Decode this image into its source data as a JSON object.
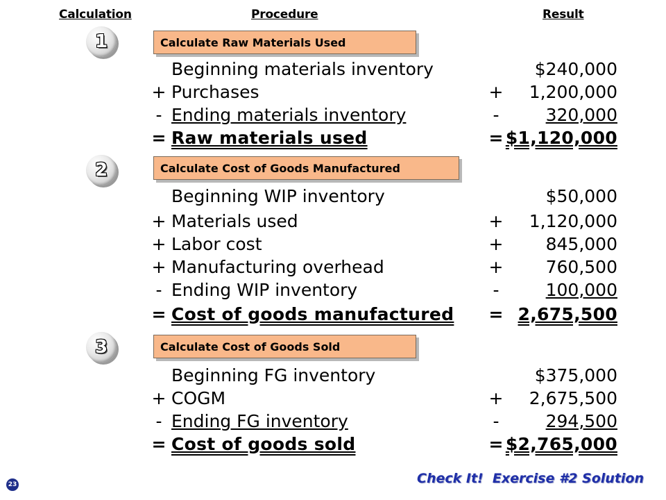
{
  "headers": {
    "calculation": "Calculation",
    "procedure": "Procedure",
    "result": "Result"
  },
  "sections": [
    {
      "number": "1",
      "title": "Calculate Raw Materials Used",
      "rows": [
        {
          "op": "",
          "label": "Beginning materials inventory",
          "rop": "",
          "value": "$240,000"
        },
        {
          "op": "+",
          "label": "Purchases",
          "rop": "+",
          "value": "1,200,000"
        },
        {
          "op": "-",
          "label": "Ending materials inventory",
          "rop": "-",
          "value": "320,000"
        },
        {
          "op": "=",
          "label": "Raw materials used",
          "rop": "=",
          "value": "$1,120,000"
        }
      ]
    },
    {
      "number": "2",
      "title": "Calculate Cost of Goods Manufactured",
      "rows": [
        {
          "op": "",
          "label": "Beginning WIP inventory",
          "rop": "",
          "value": "$50,000"
        },
        {
          "op": "+",
          "label": "Materials used",
          "rop": "+",
          "value": "1,120,000"
        },
        {
          "op": "+",
          "label": "Labor cost",
          "rop": "+",
          "value": "845,000"
        },
        {
          "op": "+",
          "label": "Manufacturing overhead",
          "rop": "+",
          "value": "760,500"
        },
        {
          "op": "-",
          "label": "Ending WIP inventory",
          "rop": "-",
          "value": "100,000"
        },
        {
          "op": "=",
          "label": "Cost of goods manufactured",
          "rop": "=",
          "value": "2,675,500"
        }
      ]
    },
    {
      "number": "3",
      "title": "Calculate Cost of Goods Sold",
      "rows": [
        {
          "op": "",
          "label": "Beginning FG inventory",
          "rop": "",
          "value": "$375,000"
        },
        {
          "op": "+",
          "label": "COGM",
          "rop": "+",
          "value": "2,675,500"
        },
        {
          "op": "-",
          "label": "Ending FG inventory",
          "rop": "-",
          "value": "294,500"
        },
        {
          "op": "=",
          "label": "Cost of goods sold",
          "rop": "=",
          "value": "$2,765,000"
        }
      ]
    }
  ],
  "footer": "Check It!  Exercise #2 Solution",
  "page_number": "23",
  "colors": {
    "procedure_box": "#f9b88a",
    "footer_text": "#1f2fa8"
  }
}
